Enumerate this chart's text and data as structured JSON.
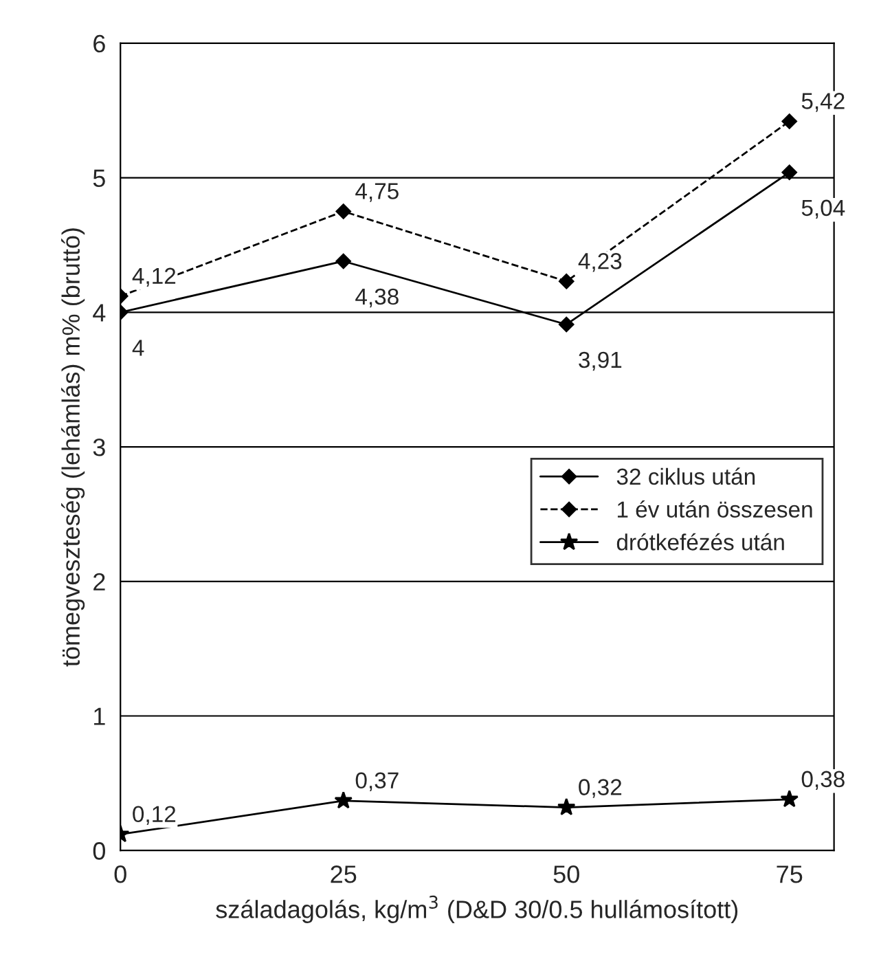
{
  "chart_data": {
    "type": "line",
    "xlabel": "száladagolás, kg/m$^{3}$ (D&D 30/0.5 hullámosított)",
    "ylabel": "tömegveszteség (lehámlás) m% (bruttó)",
    "x": [
      0,
      25,
      50,
      75
    ],
    "xlim": [
      0,
      80
    ],
    "xticks": [
      0,
      25,
      50,
      75
    ],
    "ylim": [
      0,
      6
    ],
    "yticks": [
      0,
      1,
      2,
      3,
      4,
      5,
      6
    ],
    "grid": "y",
    "legend": "right",
    "series": [
      {
        "name": "32 ciklus után",
        "color": "#000000",
        "marker": "diamond",
        "line_style": "solid",
        "values": [
          4,
          4.38,
          3.91,
          5.04
        ],
        "value_labels": [
          "4",
          "4,38",
          "3,91",
          "5,04"
        ]
      },
      {
        "name": "1 év után összesen",
        "color": "#000000",
        "marker": "diamond",
        "line_style": "dashed",
        "values": [
          4.12,
          4.75,
          4.23,
          5.42
        ],
        "value_labels": [
          "4,12",
          "4,75",
          "4,23",
          "5,42"
        ]
      },
      {
        "name": "drótkefézés után",
        "color": "#000000",
        "marker": "star",
        "line_style": "solid",
        "values": [
          0.12,
          0.37,
          0.32,
          0.38
        ],
        "value_labels": [
          "0,12",
          "0,37",
          "0,32",
          "0,38"
        ]
      }
    ]
  }
}
